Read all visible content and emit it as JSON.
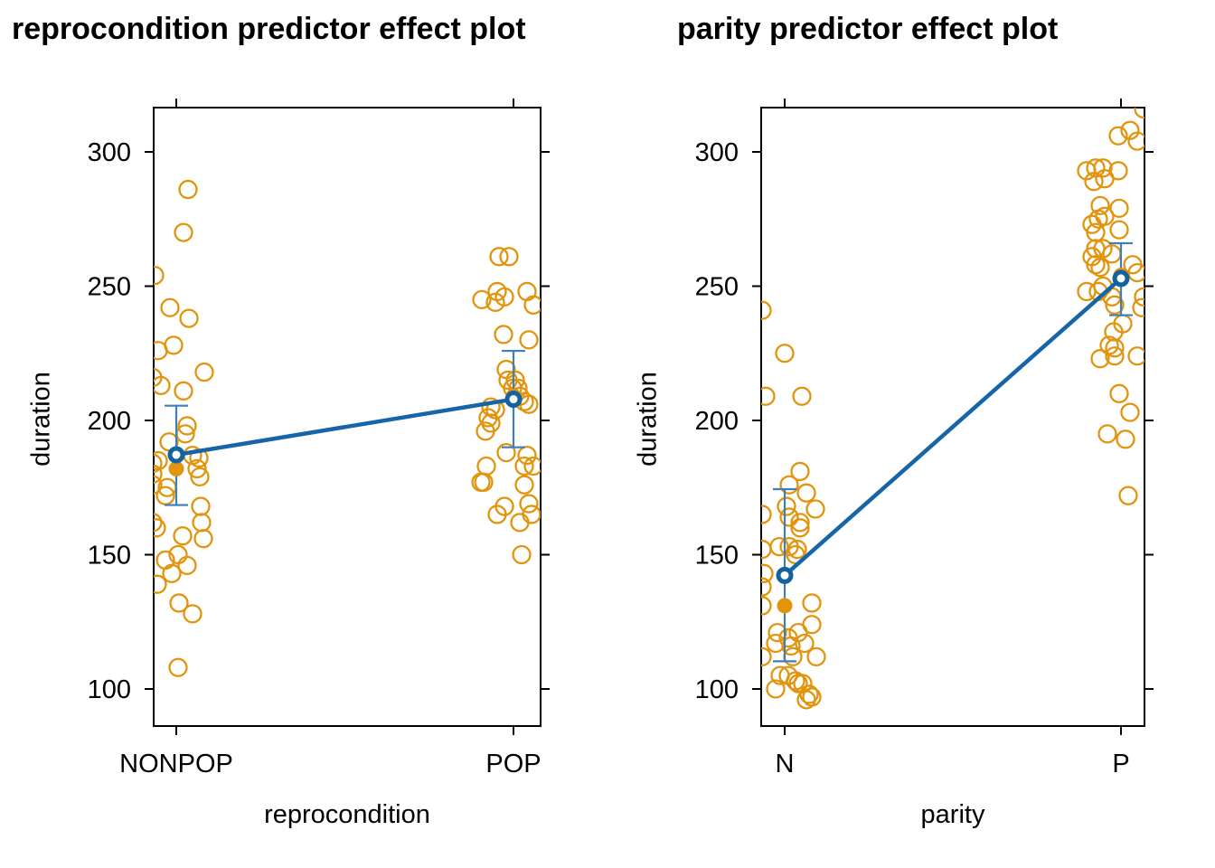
{
  "style": {
    "point_color": "#E2940D",
    "mean_color": "#E2940D",
    "fit_line_color": "#1565A8",
    "fit_point_color": "#15639E",
    "errorbar_color": "#3E7EB9",
    "axis_color": "#000000",
    "background": "#FFFFFF"
  },
  "chart_data": [
    {
      "type": "scatter",
      "title": "reprocondition predictor effect plot",
      "xlabel": "reprocondition",
      "ylabel": "duration",
      "categories": [
        "NONPOP",
        "POP"
      ],
      "y_ticks": [
        100,
        150,
        200,
        250,
        300
      ],
      "ylim": [
        85,
        317
      ],
      "grid": false,
      "legend": "none",
      "effect": {
        "levels": [
          "NONPOP",
          "POP"
        ],
        "fit": [
          187.2,
          207.9
        ],
        "ci_lower": [
          168.5,
          190.0
        ],
        "ci_upper": [
          205.5,
          225.9
        ],
        "cell_means": [
          182.0,
          209.0
        ]
      },
      "residual_points": {
        "NONPOP": [
          [
            208,
            286
          ],
          [
            203,
            270
          ],
          [
            171,
            254
          ],
          [
            188,
            242
          ],
          [
            209,
            238
          ],
          [
            192,
            228
          ],
          [
            175,
            226
          ],
          [
            226,
            218
          ],
          [
            169,
            216
          ],
          [
            178,
            213
          ],
          [
            203,
            211
          ],
          [
            207,
            198
          ],
          [
            205,
            195
          ],
          [
            187,
            192
          ],
          [
            213,
            187
          ],
          [
            220,
            186
          ],
          [
            175,
            185
          ],
          [
            169,
            184
          ],
          [
            218,
            182
          ],
          [
            169,
            180
          ],
          [
            221,
            179
          ],
          [
            185,
            175
          ],
          [
            169,
            176
          ],
          [
            183,
            172
          ],
          [
            222,
            168
          ],
          [
            169,
            162
          ],
          [
            223,
            162
          ],
          [
            173,
            160
          ],
          [
            202,
            157
          ],
          [
            225,
            156
          ],
          [
            197,
            150
          ],
          [
            183,
            148
          ],
          [
            207,
            146
          ],
          [
            190,
            143
          ],
          [
            174,
            139
          ],
          [
            198,
            132
          ],
          [
            213,
            128
          ],
          [
            197,
            108
          ]
        ],
        "POP": [
          [
            552,
            261
          ],
          [
            563,
            261
          ],
          [
            550,
            248
          ],
          [
            583,
            248
          ],
          [
            558,
            246
          ],
          [
            533,
            245
          ],
          [
            548,
            244
          ],
          [
            590,
            243
          ],
          [
            557,
            232
          ],
          [
            585,
            230
          ],
          [
            560,
            219
          ],
          [
            562,
            215
          ],
          [
            570,
            215
          ],
          [
            567,
            212
          ],
          [
            573,
            212
          ],
          [
            575,
            209
          ],
          [
            580,
            207
          ],
          [
            585,
            206
          ],
          [
            543,
            205
          ],
          [
            548,
            204
          ],
          [
            540,
            201
          ],
          [
            543,
            199
          ],
          [
            537,
            196
          ],
          [
            560,
            188
          ],
          [
            583,
            187
          ],
          [
            580,
            183
          ],
          [
            590,
            183
          ],
          [
            538,
            183
          ],
          [
            532,
            177
          ],
          [
            535,
            177
          ],
          [
            580,
            176
          ],
          [
            585,
            169
          ],
          [
            558,
            168
          ],
          [
            588,
            165
          ],
          [
            550,
            165
          ],
          [
            575,
            162
          ],
          [
            577,
            150
          ]
        ]
      }
    },
    {
      "type": "scatter",
      "title": "parity predictor effect plot",
      "xlabel": "parity",
      "ylabel": "duration",
      "categories": [
        "N",
        "P"
      ],
      "y_ticks": [
        100,
        150,
        200,
        250,
        300
      ],
      "ylim": [
        85,
        317
      ],
      "grid": false,
      "legend": "none",
      "effect": {
        "levels": [
          "N",
          "P"
        ],
        "fit": [
          142.3,
          252.9
        ],
        "ci_lower": [
          110.3,
          239.2
        ],
        "ci_upper": [
          174.4,
          266.0
        ],
        "cell_means": [
          131.0,
          254.0
        ]
      },
      "residual_points": {
        "N": [
          [
            843,
            241
          ],
          [
            868,
            225
          ],
          [
            847,
            209
          ],
          [
            887,
            209
          ],
          [
            885,
            181
          ],
          [
            873,
            176
          ],
          [
            892,
            173
          ],
          [
            870,
            168
          ],
          [
            902,
            167
          ],
          [
            843,
            165
          ],
          [
            873,
            164
          ],
          [
            885,
            162
          ],
          [
            885,
            160
          ],
          [
            862,
            153
          ],
          [
            873,
            153
          ],
          [
            882,
            152
          ],
          [
            843,
            152
          ],
          [
            880,
            150
          ],
          [
            845,
            143
          ],
          [
            843,
            138
          ],
          [
            898,
            132
          ],
          [
            843,
            131
          ],
          [
            898,
            124
          ],
          [
            860,
            121
          ],
          [
            883,
            121
          ],
          [
            872,
            119
          ],
          [
            858,
            117
          ],
          [
            890,
            117
          ],
          [
            875,
            116
          ],
          [
            877,
            112
          ],
          [
            843,
            112
          ],
          [
            903,
            112
          ],
          [
            863,
            105
          ],
          [
            872,
            105
          ],
          [
            880,
            103
          ],
          [
            883,
            102
          ],
          [
            888,
            102
          ],
          [
            858,
            100
          ],
          [
            895,
            98
          ],
          [
            898,
            97
          ],
          [
            892,
            96
          ]
        ],
        "P": [
          [
            1265,
            316
          ],
          [
            1250,
            308
          ],
          [
            1237,
            306
          ],
          [
            1258,
            304
          ],
          [
            1212,
            294
          ],
          [
            1202,
            293
          ],
          [
            1220,
            294
          ],
          [
            1237,
            293
          ],
          [
            1222,
            290
          ],
          [
            1210,
            289
          ],
          [
            1217,
            280
          ],
          [
            1238,
            279
          ],
          [
            1222,
            276
          ],
          [
            1215,
            275
          ],
          [
            1208,
            273
          ],
          [
            1238,
            271
          ],
          [
            1212,
            270
          ],
          [
            1212,
            264
          ],
          [
            1220,
            264
          ],
          [
            1230,
            262
          ],
          [
            1208,
            261
          ],
          [
            1212,
            258
          ],
          [
            1253,
            258
          ],
          [
            1217,
            257
          ],
          [
            1258,
            255
          ],
          [
            1220,
            250
          ],
          [
            1215,
            248
          ],
          [
            1202,
            248
          ],
          [
            1230,
            246
          ],
          [
            1265,
            246
          ],
          [
            1233,
            243
          ],
          [
            1263,
            242
          ],
          [
            1242,
            236
          ],
          [
            1232,
            233
          ],
          [
            1227,
            228
          ],
          [
            1233,
            227
          ],
          [
            1217,
            223
          ],
          [
            1233,
            224
          ],
          [
            1258,
            224
          ],
          [
            1238,
            210
          ],
          [
            1250,
            203
          ],
          [
            1225,
            195
          ],
          [
            1245,
            193
          ],
          [
            1248,
            172
          ]
        ]
      }
    }
  ]
}
